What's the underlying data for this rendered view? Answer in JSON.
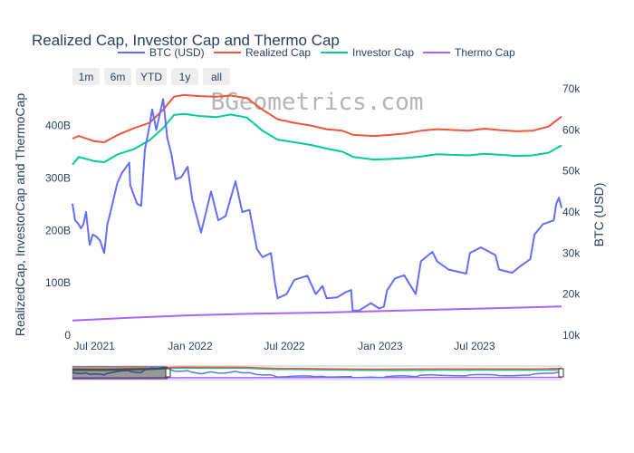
{
  "chart_data": {
    "type": "line",
    "title": "Realized Cap, Investor Cap and Thermo Cap",
    "watermark": "BGeometrics.com",
    "legend": [
      "BTC (USD)",
      "Realized Cap",
      "Investor Cap",
      "Thermo Cap"
    ],
    "legend_position": "top",
    "range_selector": [
      "1m",
      "6m",
      "YTD",
      "1y",
      "all"
    ],
    "y_left": {
      "label": "RealizedCap, InvestorCap and ThermoCap",
      "range": [
        0,
        470
      ],
      "ticks": [
        0,
        100,
        200,
        300,
        400
      ],
      "tick_labels": [
        "0",
        "100B",
        "200B",
        "300B",
        "400B"
      ]
    },
    "y_right": {
      "label": "BTC (USD)",
      "range": [
        10000,
        70000
      ],
      "ticks": [
        10000,
        20000,
        30000,
        40000,
        50000,
        60000,
        70000
      ],
      "tick_labels": [
        "10k",
        "20k",
        "30k",
        "40k",
        "50k",
        "60k",
        "70k"
      ]
    },
    "x": {
      "range": [
        "2021-05-20",
        "2023-12-15"
      ],
      "ticks": [
        "2021-07-01",
        "2022-01-01",
        "2022-07-01",
        "2023-01-01",
        "2023-07-01"
      ],
      "tick_labels": [
        "Jul 2021",
        "Jan 2022",
        "Jul 2022",
        "Jan 2023",
        "Jul 2023"
      ]
    },
    "grid": false,
    "series": [
      {
        "name": "BTC (USD)",
        "axis": "right",
        "color": "#636efa",
        "points": [
          [
            "2021-05-20",
            42000
          ],
          [
            "2021-05-25",
            38000
          ],
          [
            "2021-06-01",
            37000
          ],
          [
            "2021-06-05",
            36000
          ],
          [
            "2021-06-10",
            37000
          ],
          [
            "2021-06-15",
            40000
          ],
          [
            "2021-06-22",
            32000
          ],
          [
            "2021-06-28",
            34500
          ],
          [
            "2021-07-05",
            34000
          ],
          [
            "2021-07-12",
            33000
          ],
          [
            "2021-07-20",
            30000
          ],
          [
            "2021-07-26",
            37000
          ],
          [
            "2021-08-01",
            40000
          ],
          [
            "2021-08-14",
            47000
          ],
          [
            "2021-08-23",
            49500
          ],
          [
            "2021-09-06",
            52000
          ],
          [
            "2021-09-08",
            46500
          ],
          [
            "2021-09-21",
            42000
          ],
          [
            "2021-09-29",
            41500
          ],
          [
            "2021-10-06",
            55000
          ],
          [
            "2021-10-15",
            61000
          ],
          [
            "2021-10-20",
            65000
          ],
          [
            "2021-10-28",
            60000
          ],
          [
            "2021-11-10",
            67500
          ],
          [
            "2021-11-18",
            58000
          ],
          [
            "2021-11-26",
            54000
          ],
          [
            "2021-12-04",
            48000
          ],
          [
            "2021-12-15",
            48500
          ],
          [
            "2021-12-27",
            51000
          ],
          [
            "2022-01-05",
            43000
          ],
          [
            "2022-01-22",
            35000
          ],
          [
            "2022-02-10",
            45000
          ],
          [
            "2022-02-24",
            38000
          ],
          [
            "2022-03-10",
            39000
          ],
          [
            "2022-03-29",
            47500
          ],
          [
            "2022-04-11",
            40000
          ],
          [
            "2022-04-25",
            40500
          ],
          [
            "2022-05-09",
            31000
          ],
          [
            "2022-05-20",
            29000
          ],
          [
            "2022-06-05",
            30000
          ],
          [
            "2022-06-13",
            22500
          ],
          [
            "2022-06-18",
            19000
          ],
          [
            "2022-07-05",
            20000
          ],
          [
            "2022-07-20",
            23500
          ],
          [
            "2022-08-14",
            24500
          ],
          [
            "2022-08-30",
            20000
          ],
          [
            "2022-09-12",
            22000
          ],
          [
            "2022-09-20",
            19000
          ],
          [
            "2022-10-10",
            19200
          ],
          [
            "2022-10-27",
            20500
          ],
          [
            "2022-11-06",
            21000
          ],
          [
            "2022-11-09",
            16000
          ],
          [
            "2022-11-21",
            16000
          ],
          [
            "2022-12-14",
            17800
          ],
          [
            "2022-12-30",
            16500
          ],
          [
            "2023-01-08",
            17000
          ],
          [
            "2023-01-14",
            20900
          ],
          [
            "2023-01-29",
            23800
          ],
          [
            "2023-02-16",
            24600
          ],
          [
            "2023-03-10",
            20000
          ],
          [
            "2023-03-20",
            28000
          ],
          [
            "2023-04-11",
            30300
          ],
          [
            "2023-04-20",
            28000
          ],
          [
            "2023-05-12",
            26000
          ],
          [
            "2023-06-15",
            25000
          ],
          [
            "2023-06-22",
            30000
          ],
          [
            "2023-07-13",
            31400
          ],
          [
            "2023-08-10",
            29500
          ],
          [
            "2023-08-17",
            26000
          ],
          [
            "2023-09-11",
            25200
          ],
          [
            "2023-09-29",
            27000
          ],
          [
            "2023-10-16",
            28500
          ],
          [
            "2023-10-24",
            34500
          ],
          [
            "2023-11-09",
            37000
          ],
          [
            "2023-11-20",
            37500
          ],
          [
            "2023-11-30",
            38000
          ],
          [
            "2023-12-05",
            42000
          ],
          [
            "2023-12-10",
            43500
          ],
          [
            "2023-12-15",
            41000
          ]
        ]
      },
      {
        "name": "Realized Cap",
        "axis": "left",
        "color": "#ef553b",
        "points": [
          [
            "2021-05-20",
            375
          ],
          [
            "2021-06-01",
            380
          ],
          [
            "2021-07-01",
            370
          ],
          [
            "2021-07-20",
            368
          ],
          [
            "2021-08-15",
            382
          ],
          [
            "2021-09-15",
            395
          ],
          [
            "2021-10-15",
            405
          ],
          [
            "2021-11-10",
            430
          ],
          [
            "2021-12-01",
            455
          ],
          [
            "2021-12-20",
            458
          ],
          [
            "2022-01-20",
            456
          ],
          [
            "2022-02-20",
            455
          ],
          [
            "2022-03-20",
            457
          ],
          [
            "2022-04-20",
            452
          ],
          [
            "2022-05-20",
            430
          ],
          [
            "2022-06-18",
            412
          ],
          [
            "2022-07-20",
            405
          ],
          [
            "2022-08-20",
            400
          ],
          [
            "2022-09-20",
            393
          ],
          [
            "2022-10-20",
            390
          ],
          [
            "2022-11-10",
            382
          ],
          [
            "2022-12-20",
            380
          ],
          [
            "2023-01-20",
            382
          ],
          [
            "2023-02-20",
            385
          ],
          [
            "2023-03-20",
            390
          ],
          [
            "2023-04-20",
            393
          ],
          [
            "2023-06-20",
            390
          ],
          [
            "2023-07-20",
            394
          ],
          [
            "2023-08-20",
            391
          ],
          [
            "2023-09-20",
            389
          ],
          [
            "2023-10-20",
            390
          ],
          [
            "2023-11-20",
            398
          ],
          [
            "2023-12-15",
            417
          ]
        ]
      },
      {
        "name": "Investor Cap",
        "axis": "left",
        "color": "#00cc96",
        "points": [
          [
            "2021-05-20",
            325
          ],
          [
            "2021-06-01",
            340
          ],
          [
            "2021-07-01",
            332
          ],
          [
            "2021-07-20",
            330
          ],
          [
            "2021-08-15",
            345
          ],
          [
            "2021-09-15",
            355
          ],
          [
            "2021-10-15",
            372
          ],
          [
            "2021-11-10",
            395
          ],
          [
            "2021-12-01",
            420
          ],
          [
            "2021-12-20",
            422
          ],
          [
            "2022-01-20",
            418
          ],
          [
            "2022-02-20",
            416
          ],
          [
            "2022-03-20",
            421
          ],
          [
            "2022-04-20",
            415
          ],
          [
            "2022-05-20",
            390
          ],
          [
            "2022-06-18",
            373
          ],
          [
            "2022-07-20",
            368
          ],
          [
            "2022-08-20",
            363
          ],
          [
            "2022-09-20",
            356
          ],
          [
            "2022-10-20",
            350
          ],
          [
            "2022-11-10",
            340
          ],
          [
            "2022-12-20",
            335
          ],
          [
            "2023-01-20",
            336
          ],
          [
            "2023-02-20",
            338
          ],
          [
            "2023-03-20",
            341
          ],
          [
            "2023-04-20",
            345
          ],
          [
            "2023-06-20",
            343
          ],
          [
            "2023-07-20",
            346
          ],
          [
            "2023-08-20",
            344
          ],
          [
            "2023-09-20",
            342
          ],
          [
            "2023-10-20",
            343
          ],
          [
            "2023-11-20",
            348
          ],
          [
            "2023-12-15",
            362
          ]
        ]
      },
      {
        "name": "Thermo Cap",
        "axis": "left",
        "color": "#ab63fa",
        "points": [
          [
            "2021-05-20",
            28
          ],
          [
            "2021-09-01",
            33
          ],
          [
            "2022-01-01",
            38
          ],
          [
            "2022-05-01",
            41
          ],
          [
            "2022-09-01",
            43
          ],
          [
            "2023-01-01",
            46
          ],
          [
            "2023-05-01",
            49
          ],
          [
            "2023-09-01",
            52
          ],
          [
            "2023-12-15",
            55
          ]
        ]
      }
    ]
  }
}
